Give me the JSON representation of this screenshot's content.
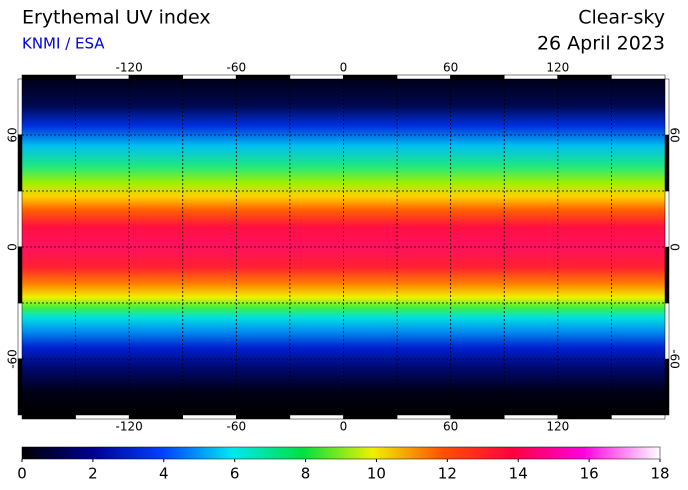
{
  "title": "Erythemal UV index",
  "credit": "KNMI / ESA",
  "condition": "Clear-sky",
  "date": "26 April 2023",
  "map": {
    "xlim": [
      -180,
      180
    ],
    "ylim": [
      -90,
      90
    ],
    "xticks": [
      -120,
      -60,
      0,
      60,
      120
    ],
    "yticks": [
      -60,
      0,
      60
    ],
    "grid_step": 30
  },
  "colorbar": {
    "lim": [
      0,
      18
    ],
    "ticks": [
      0,
      2,
      4,
      6,
      8,
      10,
      12,
      14,
      16,
      18
    ]
  }
}
